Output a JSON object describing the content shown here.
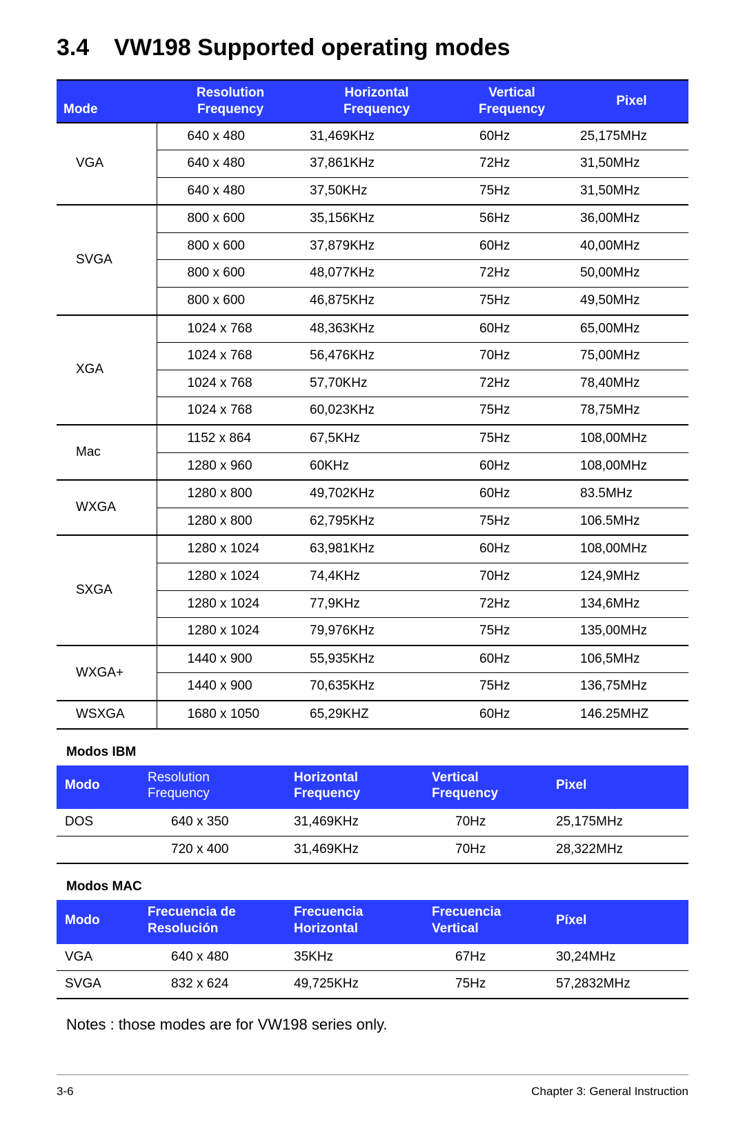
{
  "colors": {
    "header_bg": "#2b3eff",
    "header_text": "#ffffff",
    "page_bg": "#ffffff",
    "text": "#000000",
    "rule": "#000000"
  },
  "title": {
    "number": "3.4",
    "text": "VW198 Supported operating modes"
  },
  "main_table": {
    "headers": {
      "mode": "Mode",
      "resolution": "Resolution Frequency",
      "hfreq": "Horizontal Frequency",
      "vfreq": "Vertical Frequency",
      "pixel": "Pixel"
    },
    "groups": [
      {
        "mode": "VGA",
        "rows": [
          {
            "res": "640 x 480",
            "h": "31,469KHz",
            "v": "60Hz",
            "p": "25,175MHz"
          },
          {
            "res": "640 x 480",
            "h": "37,861KHz",
            "v": "72Hz",
            "p": "31,50MHz"
          },
          {
            "res": "640 x 480",
            "h": "37,50KHz",
            "v": "75Hz",
            "p": "31,50MHz"
          }
        ]
      },
      {
        "mode": "SVGA",
        "rows": [
          {
            "res": "800 x 600",
            "h": "35,156KHz",
            "v": "56Hz",
            "p": "36,00MHz"
          },
          {
            "res": "800 x 600",
            "h": "37,879KHz",
            "v": "60Hz",
            "p": "40,00MHz"
          },
          {
            "res": "800 x 600",
            "h": "48,077KHz",
            "v": "72Hz",
            "p": "50,00MHz"
          },
          {
            "res": "800 x 600",
            "h": "46,875KHz",
            "v": "75Hz",
            "p": "49,50MHz"
          }
        ]
      },
      {
        "mode": "XGA",
        "rows": [
          {
            "res": "1024 x 768",
            "h": "48,363KHz",
            "v": "60Hz",
            "p": "65,00MHz"
          },
          {
            "res": "1024 x 768",
            "h": "56,476KHz",
            "v": "70Hz",
            "p": "75,00MHz"
          },
          {
            "res": "1024 x 768",
            "h": "57,70KHz",
            "v": "72Hz",
            "p": "78,40MHz"
          },
          {
            "res": "1024 x 768",
            "h": "60,023KHz",
            "v": "75Hz",
            "p": "78,75MHz"
          }
        ]
      },
      {
        "mode": "Mac",
        "rows": [
          {
            "res": "1152 x 864",
            "h": "67,5KHz",
            "v": "75Hz",
            "p": "108,00MHz"
          },
          {
            "res": "1280 x 960",
            "h": "60KHz",
            "v": "60Hz",
            "p": "108,00MHz"
          }
        ]
      },
      {
        "mode": "WXGA",
        "rows": [
          {
            "res": "1280 x 800",
            "h": "49,702KHz",
            "v": "60Hz",
            "p": "83.5MHz"
          },
          {
            "res": "1280 x 800",
            "h": "62,795KHz",
            "v": "75Hz",
            "p": "106.5MHz"
          }
        ]
      },
      {
        "mode": "SXGA",
        "rows": [
          {
            "res": "1280 x 1024",
            "h": "63,981KHz",
            "v": "60Hz",
            "p": "108,00MHz"
          },
          {
            "res": "1280 x 1024",
            "h": "74,4KHz",
            "v": "70Hz",
            "p": "124,9MHz"
          },
          {
            "res": "1280 x 1024",
            "h": "77,9KHz",
            "v": "72Hz",
            "p": "134,6MHz"
          },
          {
            "res": "1280 x 1024",
            "h": "79,976KHz",
            "v": "75Hz",
            "p": "135,00MHz"
          }
        ]
      },
      {
        "mode": "WXGA+",
        "rows": [
          {
            "res": "1440 x 900",
            "h": "55,935KHz",
            "v": "60Hz",
            "p": "106,5MHz"
          },
          {
            "res": "1440 x 900",
            "h": "70,635KHz",
            "v": "75Hz",
            "p": "136,75MHz"
          }
        ]
      },
      {
        "mode": "WSXGA",
        "rows": [
          {
            "res": "1680 x 1050",
            "h": "65,29KHZ",
            "v": "60Hz",
            "p": "146.25MHZ"
          }
        ]
      }
    ]
  },
  "ibm": {
    "heading": "Modos IBM",
    "headers": {
      "mode": "Modo",
      "res_a": "Resolution",
      "res_b": "Frequency",
      "hfreq": "Horizontal Frequency",
      "vfreq": "Vertical Frequency",
      "pixel": "Pixel"
    },
    "rows": [
      {
        "mode": "DOS",
        "res": "640 x 350",
        "h": "31,469KHz",
        "v": "70Hz",
        "p": "25,175MHz"
      },
      {
        "mode": "",
        "res": "720 x 400",
        "h": "31,469KHz",
        "v": "70Hz",
        "p": "28,322MHz"
      }
    ]
  },
  "mac": {
    "heading": "Modos MAC",
    "headers": {
      "mode": "Modo",
      "res": "Frecuencia de Resolución",
      "hfreq": "Frecuencia Horizontal",
      "vfreq": "Frecuencia Vertical",
      "pixel": "Píxel"
    },
    "rows": [
      {
        "mode": "VGA",
        "res": "640 x 480",
        "h": "35KHz",
        "v": "67Hz",
        "p": "30,24MHz"
      },
      {
        "mode": "SVGA",
        "res": "832 x 624",
        "h": "49,725KHz",
        "v": "75Hz",
        "p": "57,2832MHz"
      }
    ]
  },
  "notes": "Notes : those modes are for VW198 series only.",
  "footer": {
    "page": "3-6",
    "chapter": "Chapter 3: General Instruction"
  }
}
